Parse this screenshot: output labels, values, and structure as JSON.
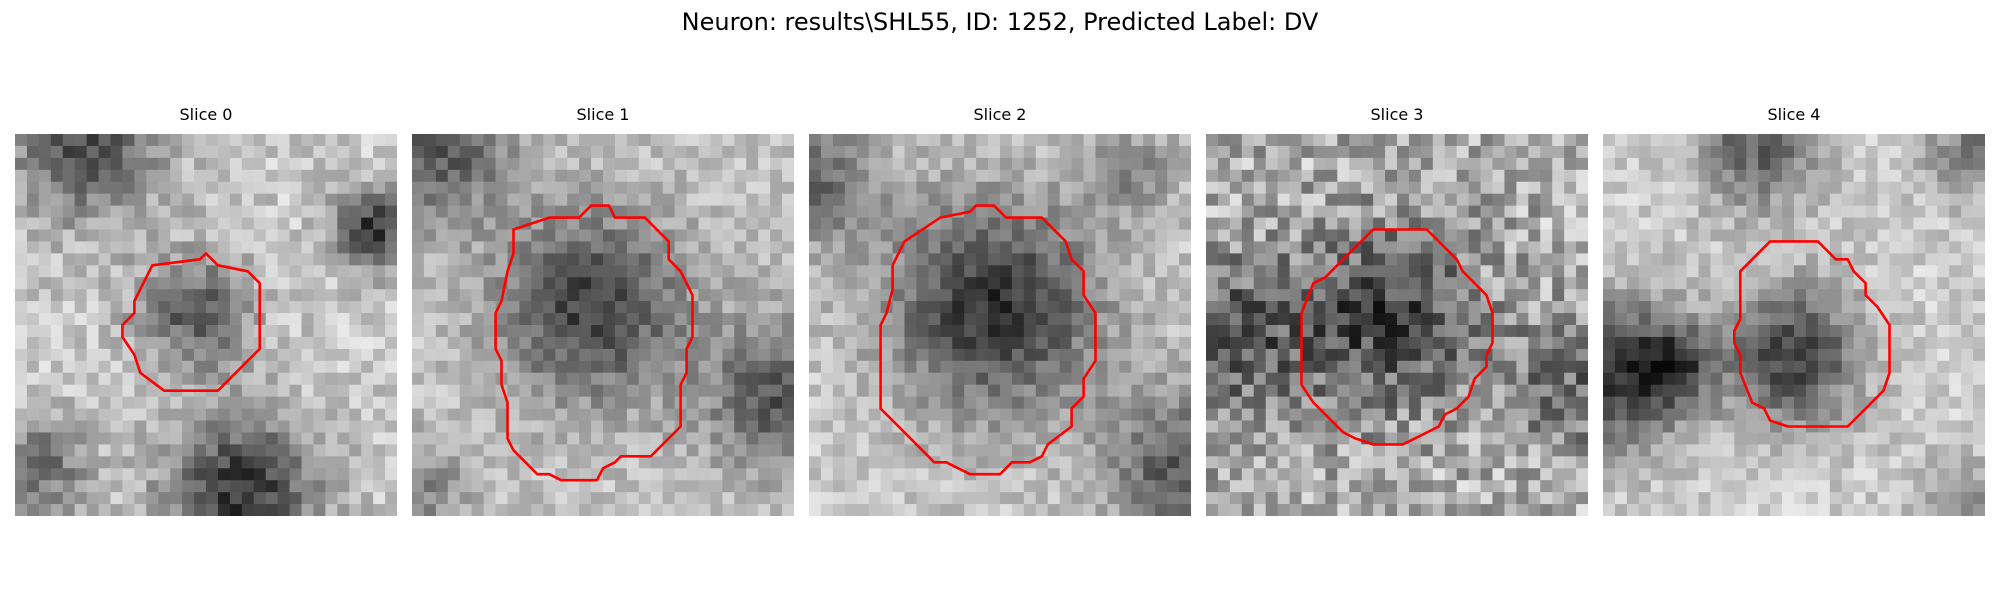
{
  "figure": {
    "title": "Neuron: results\\SHL55, ID: 1252, Predicted Label: DV",
    "contour_color": "#ff0000",
    "colormap": "grayscale"
  },
  "panels": [
    {
      "title": "Slice 0",
      "contour": "small-octagon",
      "dark_blob_position": "center-small"
    },
    {
      "title": "Slice 1",
      "contour": "medium-octagon",
      "dark_blob_position": "center"
    },
    {
      "title": "Slice 2",
      "contour": "large-octagon",
      "dark_blob_position": "center-large"
    },
    {
      "title": "Slice 3",
      "contour": "medium-octagon",
      "dark_blob_position": "center-noisy"
    },
    {
      "title": "Slice 4",
      "contour": "medium-octagon",
      "dark_blob_position": "right-of-center"
    }
  ]
}
